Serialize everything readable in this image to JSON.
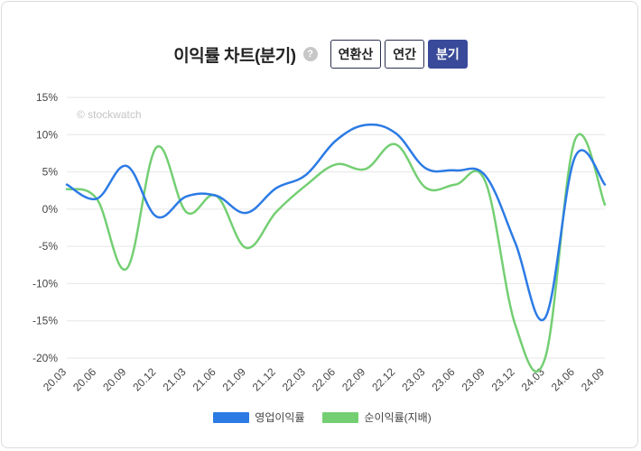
{
  "header": {
    "title": "이익률 차트(분기)",
    "help_icon": "?",
    "buttons": [
      "연환산",
      "연간",
      "분기"
    ],
    "active_button": "분기"
  },
  "watermark": "© stockwatch",
  "colors": {
    "series1": "#2c7be5",
    "series2": "#74cf73",
    "active_button": "#3a4a9a"
  },
  "chart_data": {
    "type": "line",
    "x": [
      "20.03",
      "20.06",
      "20.09",
      "20.12",
      "21.03",
      "21.06",
      "21.09",
      "21.12",
      "22.03",
      "22.06",
      "22.09",
      "22.12",
      "23.03",
      "23.06",
      "23.09",
      "23.12",
      "24.03",
      "24.06",
      "24.09"
    ],
    "y_ticks": [
      "15%",
      "10%",
      "5%",
      "0%",
      "-5%",
      "-10%",
      "-15%",
      "-20%"
    ],
    "ylim": [
      -20,
      15
    ],
    "grid": true,
    "legend_position": "bottom",
    "series": [
      {
        "name": "영업이익률",
        "values": [
          3.3,
          1.4,
          5.8,
          -1.0,
          1.7,
          1.8,
          -0.5,
          2.8,
          4.6,
          9.2,
          11.3,
          10.2,
          5.5,
          5.2,
          4.5,
          -4.5,
          -14.6,
          7.0,
          3.3
        ]
      },
      {
        "name": "순이익률(지배)",
        "values": [
          2.7,
          1.4,
          -8.0,
          8.3,
          -0.4,
          1.8,
          -5.2,
          -0.4,
          3.2,
          6.0,
          5.4,
          8.7,
          2.9,
          3.3,
          3.7,
          -15.5,
          -20.0,
          9.3,
          0.6
        ]
      }
    ]
  }
}
